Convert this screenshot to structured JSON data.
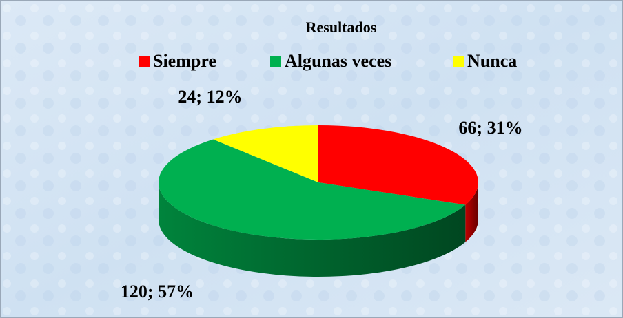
{
  "chart_data": {
    "type": "pie",
    "title": "Resultados",
    "categories": [
      "Siempre",
      "Algunas veces",
      "Nunca"
    ],
    "values": [
      66,
      120,
      24
    ],
    "value_labels": [
      "66; 31%",
      "120; 57%",
      "24; 12%"
    ],
    "colors": [
      "#ff0000",
      "#00b050",
      "#ffff00"
    ],
    "legend": "top"
  }
}
